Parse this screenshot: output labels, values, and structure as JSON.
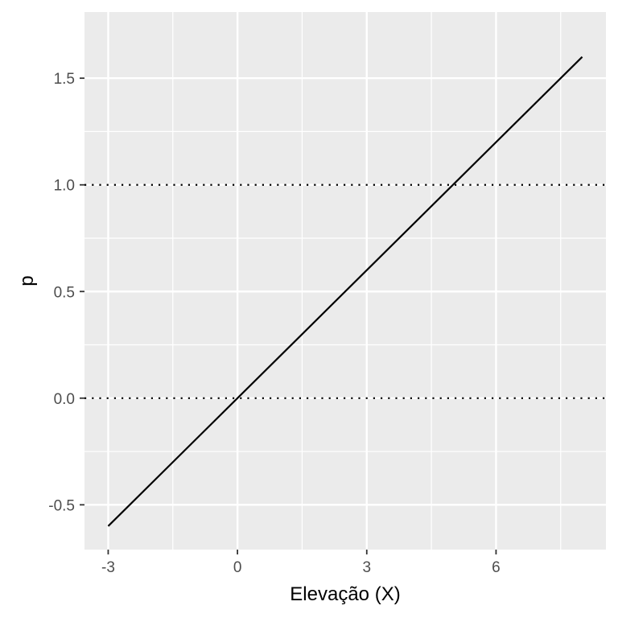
{
  "chart_data": {
    "type": "line",
    "title": "",
    "xlabel": "Elevação (X)",
    "ylabel": "p",
    "xlim": [
      -3.55,
      8.55
    ],
    "ylim": [
      -0.71,
      1.81
    ],
    "x_ticks": [
      -3,
      0,
      3,
      6
    ],
    "x_tick_labels": [
      "-3",
      "0",
      "3",
      "6"
    ],
    "y_ticks": [
      -0.5,
      0.0,
      0.5,
      1.0,
      1.5
    ],
    "y_tick_labels": [
      "-0.5",
      "0.0",
      "0.5",
      "1.0",
      "1.5"
    ],
    "x_minor_ticks": [
      -1.5,
      1.5,
      4.5,
      7.5
    ],
    "y_minor_ticks": [
      -0.25,
      0.25,
      0.75,
      1.25
    ],
    "grid": true,
    "panel_background": "#ebebeb",
    "grid_color": "#ffffff",
    "series": [
      {
        "x": [
          -3,
          8
        ],
        "y": [
          -0.6,
          1.6
        ],
        "color": "#000000"
      }
    ],
    "reference_lines": [
      {
        "orientation": "horizontal",
        "y": 0.0,
        "style": "dotted",
        "color": "#000000"
      },
      {
        "orientation": "horizontal",
        "y": 1.0,
        "style": "dotted",
        "color": "#000000"
      }
    ]
  }
}
